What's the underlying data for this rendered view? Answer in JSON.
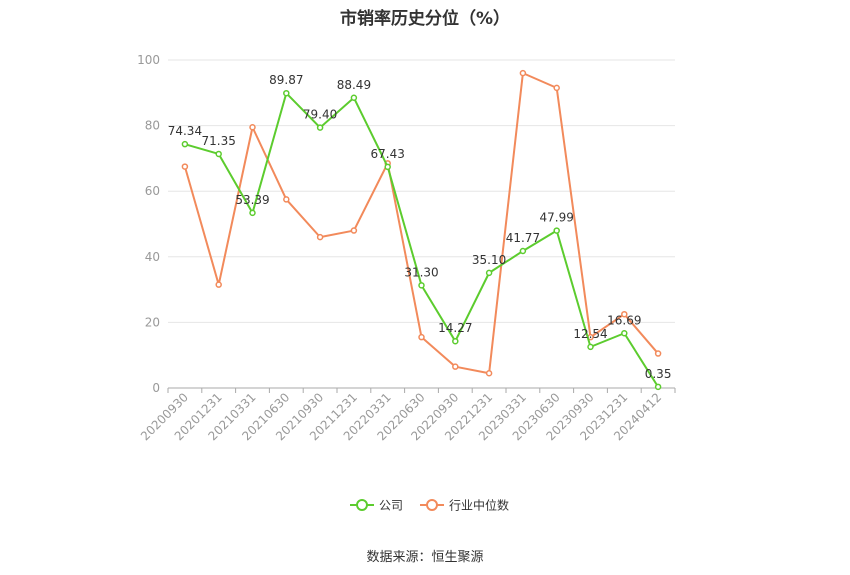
{
  "chart_data": {
    "type": "line",
    "title": "市销率历史分位（%）",
    "xlabel": "",
    "ylabel": "",
    "categories": [
      "20200930",
      "20201231",
      "20210331",
      "20210630",
      "20210930",
      "20211231",
      "20220331",
      "20220630",
      "20220930",
      "20221231",
      "20230331",
      "20230630",
      "20230930",
      "20231231",
      "20240412"
    ],
    "ylim": [
      0,
      100
    ],
    "yticks": [
      0,
      20,
      40,
      60,
      80,
      100
    ],
    "grid": true,
    "legend_position": "bottom",
    "series": [
      {
        "name": "公司",
        "color": "#5ccc2e",
        "values": [
          74.34,
          71.35,
          53.39,
          89.87,
          79.4,
          88.49,
          67.43,
          31.3,
          14.27,
          35.1,
          41.77,
          47.99,
          12.54,
          16.69,
          0.35
        ],
        "labels": [
          "74.34",
          "71.35",
          "53.39",
          "89.87",
          "79.40",
          "88.49",
          "67.43",
          "31.30",
          "14.27",
          "35.10",
          "41.77",
          "47.99",
          "12.54",
          "16.69",
          "0.35"
        ]
      },
      {
        "name": "行业中位数",
        "color": "#f28a5b",
        "values": [
          67.5,
          31.5,
          79.5,
          57.5,
          46.0,
          48.0,
          68.5,
          15.5,
          6.5,
          4.5,
          96.0,
          91.5,
          15.5,
          22.5,
          10.5
        ]
      }
    ]
  },
  "source": "数据来源：恒生聚源"
}
